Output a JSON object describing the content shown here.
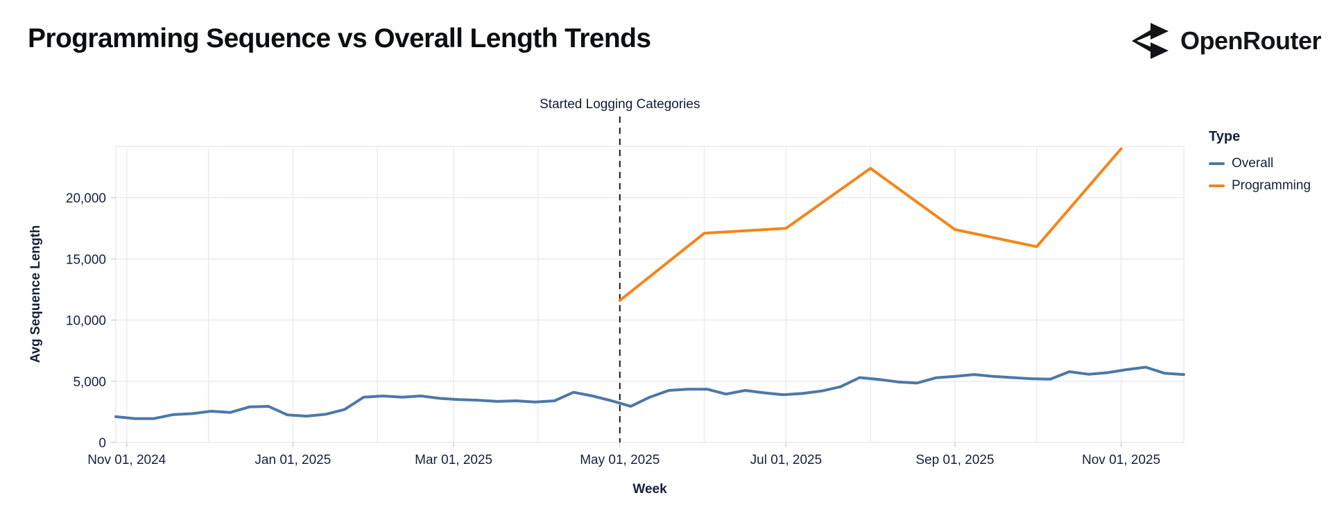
{
  "header": {
    "title": "Programming Sequence vs Overall Length Trends",
    "brand": "OpenRouter"
  },
  "chart_data": {
    "type": "line",
    "title": "Programming Sequence vs Overall Length Trends",
    "xlabel": "Week",
    "ylabel": "Avg Sequence Length",
    "legend_title": "Type",
    "legend_position": "right",
    "grid": true,
    "x_domain": [
      "2024-10-28",
      "2025-11-24"
    ],
    "ylim": [
      0,
      24200
    ],
    "y_ticks": [
      {
        "value": 0,
        "label": "0"
      },
      {
        "value": 5000,
        "label": "5,000"
      },
      {
        "value": 10000,
        "label": "10,000"
      },
      {
        "value": 15000,
        "label": "15,000"
      },
      {
        "value": 20000,
        "label": "20,000"
      }
    ],
    "x_ticks": [
      {
        "date": "2024-11-01",
        "label": "Nov 01, 2024"
      },
      {
        "date": "2025-01-01",
        "label": "Jan 01, 2025"
      },
      {
        "date": "2025-03-01",
        "label": "Mar 01, 2025"
      },
      {
        "date": "2025-05-01",
        "label": "May 01, 2025"
      },
      {
        "date": "2025-07-01",
        "label": "Jul 01, 2025"
      },
      {
        "date": "2025-09-01",
        "label": "Sep 01, 2025"
      },
      {
        "date": "2025-11-01",
        "label": "Nov 01, 2025"
      }
    ],
    "x_gridlines": [
      "2024-11-01",
      "2024-12-01",
      "2025-01-01",
      "2025-02-01",
      "2025-03-01",
      "2025-04-01",
      "2025-05-01",
      "2025-06-01",
      "2025-07-01",
      "2025-08-01",
      "2025-09-01",
      "2025-10-01",
      "2025-11-01"
    ],
    "annotation": {
      "date": "2025-05-01",
      "label": "Started Logging Categories"
    },
    "series": [
      {
        "name": "Overall",
        "color": "#4c78a8",
        "points": [
          [
            "2024-10-28",
            2100
          ],
          [
            "2024-11-04",
            1950
          ],
          [
            "2024-11-11",
            1950
          ],
          [
            "2024-11-18",
            2270
          ],
          [
            "2024-11-25",
            2350
          ],
          [
            "2024-12-02",
            2550
          ],
          [
            "2024-12-09",
            2450
          ],
          [
            "2024-12-16",
            2900
          ],
          [
            "2024-12-23",
            2950
          ],
          [
            "2024-12-30",
            2250
          ],
          [
            "2025-01-06",
            2150
          ],
          [
            "2025-01-13",
            2300
          ],
          [
            "2025-01-20",
            2700
          ],
          [
            "2025-01-27",
            3700
          ],
          [
            "2025-02-03",
            3800
          ],
          [
            "2025-02-10",
            3700
          ],
          [
            "2025-02-17",
            3800
          ],
          [
            "2025-02-24",
            3600
          ],
          [
            "2025-03-03",
            3500
          ],
          [
            "2025-03-10",
            3450
          ],
          [
            "2025-03-17",
            3350
          ],
          [
            "2025-03-24",
            3400
          ],
          [
            "2025-03-31",
            3300
          ],
          [
            "2025-04-07",
            3400
          ],
          [
            "2025-04-14",
            4100
          ],
          [
            "2025-04-21",
            3800
          ],
          [
            "2025-04-28",
            3400
          ],
          [
            "2025-05-05",
            2950
          ],
          [
            "2025-05-12",
            3700
          ],
          [
            "2025-05-19",
            4250
          ],
          [
            "2025-05-26",
            4350
          ],
          [
            "2025-06-02",
            4350
          ],
          [
            "2025-06-09",
            3950
          ],
          [
            "2025-06-16",
            4250
          ],
          [
            "2025-06-23",
            4050
          ],
          [
            "2025-06-30",
            3900
          ],
          [
            "2025-07-07",
            4000
          ],
          [
            "2025-07-14",
            4200
          ],
          [
            "2025-07-21",
            4550
          ],
          [
            "2025-07-28",
            5300
          ],
          [
            "2025-08-04",
            5150
          ],
          [
            "2025-08-11",
            4950
          ],
          [
            "2025-08-18",
            4850
          ],
          [
            "2025-08-25",
            5280
          ],
          [
            "2025-09-01",
            5400
          ],
          [
            "2025-09-08",
            5550
          ],
          [
            "2025-09-15",
            5400
          ],
          [
            "2025-09-22",
            5300
          ],
          [
            "2025-09-29",
            5210
          ],
          [
            "2025-10-06",
            5170
          ],
          [
            "2025-10-13",
            5780
          ],
          [
            "2025-10-20",
            5570
          ],
          [
            "2025-10-27",
            5700
          ],
          [
            "2025-11-03",
            5950
          ],
          [
            "2025-11-10",
            6150
          ],
          [
            "2025-11-17",
            5650
          ],
          [
            "2025-11-24",
            5550
          ]
        ]
      },
      {
        "name": "Programming",
        "color": "#f58518",
        "points": [
          [
            "2025-05-01",
            11600
          ],
          [
            "2025-06-01",
            17100
          ],
          [
            "2025-07-01",
            17500
          ],
          [
            "2025-08-01",
            22400
          ],
          [
            "2025-09-01",
            17400
          ],
          [
            "2025-10-01",
            16000
          ],
          [
            "2025-11-01",
            24000
          ]
        ]
      }
    ]
  }
}
